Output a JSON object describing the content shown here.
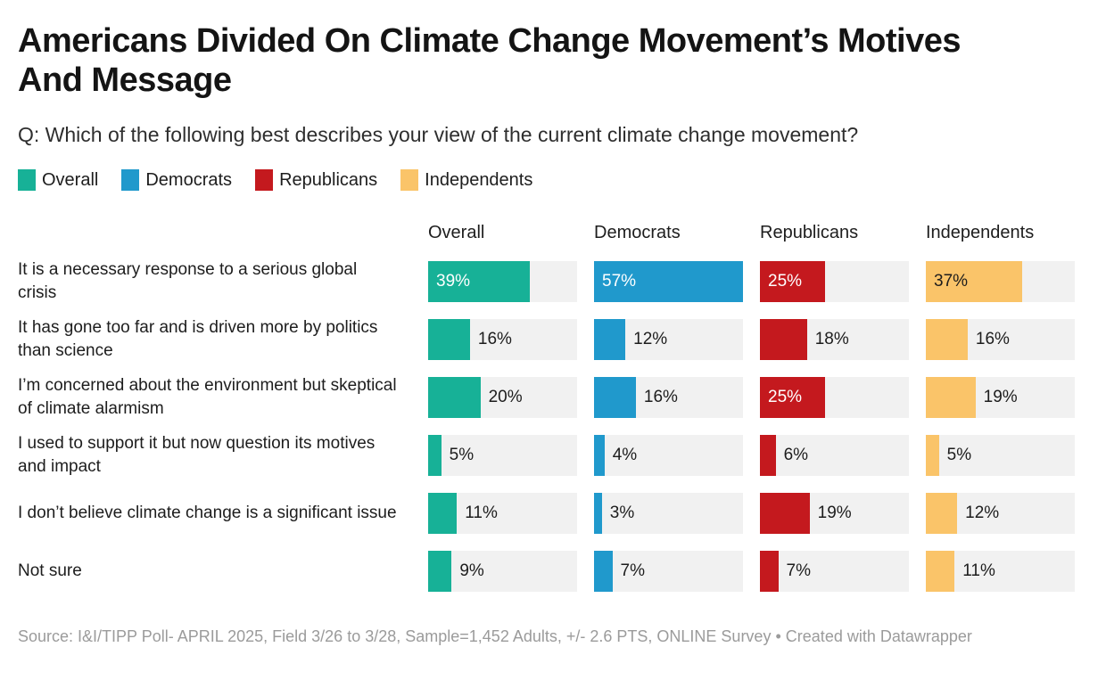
{
  "header": {
    "title": "Americans Divided On Climate Change Movement’s Motives\nAnd Message",
    "subtitle": "Q: Which of the following best describes your view of the current climate change movement?"
  },
  "colors": {
    "background": "#ffffff",
    "title_text": "#141414",
    "body_text": "#1d1d1d",
    "subtitle_text": "#2e2e2e",
    "footer_text": "#9b9b9b",
    "bar_track": "#f1f1f1"
  },
  "chart_data": {
    "type": "bar",
    "orientation": "horizontal",
    "title": "Americans Divided On Climate Change Movement’s Motives And Message",
    "subtitle": "Q: Which of the following best describes your view of the current climate change movement?",
    "unit": "%",
    "grid": false,
    "legend_position": "top",
    "value_labels": "shown",
    "xlim": [
      0,
      57
    ],
    "label_inside_threshold": 25,
    "categories": [
      "It is a necessary response to a serious global crisis",
      "It has gone too far and is driven more by politics than science",
      "I’m concerned about the environment but skeptical of climate alarmism",
      "I used to support it but now question its motives and impact",
      "I don’t believe climate change is a significant issue",
      "Not sure"
    ],
    "series": [
      {
        "name": "Overall",
        "color": "#17b197",
        "label_color_inside": "#ffffff",
        "values": [
          39,
          16,
          20,
          5,
          11,
          9
        ]
      },
      {
        "name": "Democrats",
        "color": "#2099cc",
        "label_color_inside": "#ffffff",
        "values": [
          57,
          12,
          16,
          4,
          3,
          7
        ]
      },
      {
        "name": "Republicans",
        "color": "#c4191e",
        "label_color_inside": "#ffffff",
        "values": [
          25,
          18,
          25,
          6,
          19,
          7
        ]
      },
      {
        "name": "Independents",
        "color": "#fac469",
        "label_color_inside": "#1d1d1d",
        "values": [
          37,
          16,
          19,
          5,
          12,
          11
        ]
      }
    ]
  },
  "footer": {
    "source": "Source: I&I/TIPP Poll- APRIL 2025, Field 3/26 to 3/28, Sample=1,452 Adults, +/- 2.6 PTS, ONLINE Survey",
    "separator": "•",
    "attribution": "Created with Datawrapper"
  }
}
